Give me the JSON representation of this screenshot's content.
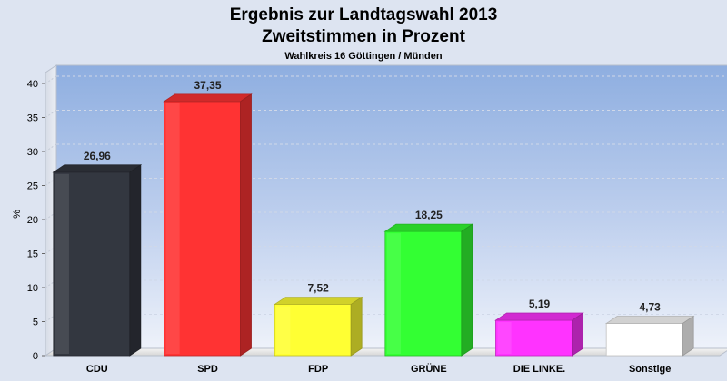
{
  "chart_data": {
    "type": "bar",
    "title": "Ergebnis zur Landtagswahl 2013",
    "subtitle": "Zweitstimmen in Prozent",
    "subtitle2": "Wahlkreis 16 Göttingen / Münden",
    "ylabel": "%",
    "xlabel": "",
    "ylim": [
      0,
      40
    ],
    "yticks": [
      "0",
      "5",
      "10",
      "15",
      "20",
      "25",
      "30",
      "35",
      "40"
    ],
    "yticks_values": [
      0,
      5,
      10,
      15,
      20,
      25,
      30,
      35,
      40
    ],
    "categories": [
      "CDU",
      "SPD",
      "FDP",
      "GRÜNE",
      "DIE LINKE.",
      "Sonstige"
    ],
    "values": [
      26.96,
      37.35,
      7.52,
      18.25,
      5.19,
      4.73
    ],
    "value_labels": [
      "26,96",
      "37,35",
      "7,52",
      "18,25",
      "5,19",
      "4,73"
    ],
    "colors": [
      "#333740",
      "#ff3333",
      "#ffff33",
      "#33ff33",
      "#ff33ff",
      "#ffffff"
    ],
    "grid": true,
    "legend": "none"
  }
}
